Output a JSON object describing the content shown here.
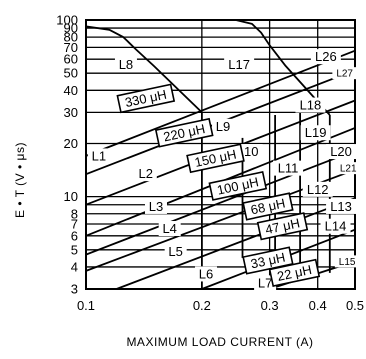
{
  "chart_data": {
    "type": "line",
    "xlabel": "MAXIMUM LOAD CURRENT (A)",
    "ylabel": "E • T (V • μs)",
    "x_scale": "log",
    "y_scale": "log",
    "xlim": [
      0.1,
      0.5
    ],
    "ylim": [
      3,
      100
    ],
    "grid": true,
    "x_ticks": [
      0.1,
      0.2,
      0.3,
      0.4,
      0.5
    ],
    "x_tick_labels": [
      "0.1",
      "0.2",
      "0.3",
      "0.4",
      "0.5"
    ],
    "y_ticks": [
      3,
      4,
      5,
      6,
      7,
      8,
      9,
      10,
      20,
      30,
      40,
      50,
      60,
      70,
      80,
      90,
      100
    ],
    "y_tick_labels": [
      "3",
      "4",
      "5",
      "6",
      "7",
      "8",
      "",
      "10",
      "20",
      "30",
      "40",
      "50",
      "60",
      "70",
      "80",
      "90",
      "100"
    ],
    "x_grid": [
      0.1,
      0.2,
      0.3,
      0.4,
      0.5
    ],
    "y_grid": [
      3,
      4,
      5,
      6,
      7,
      8,
      9,
      10,
      20,
      30,
      40,
      50,
      60,
      70,
      80,
      90,
      100
    ],
    "boundary_lines": [
      {
        "x": [
          0.1,
          0.5
        ],
        "y": [
          17,
          67
        ]
      },
      {
        "x": [
          0.1,
          0.5
        ],
        "y": [
          13.4,
          52
        ]
      },
      {
        "x": [
          0.1,
          0.5
        ],
        "y": [
          9,
          35
        ]
      },
      {
        "x": [
          0.1,
          0.5
        ],
        "y": [
          6,
          24.5
        ]
      },
      {
        "x": [
          0.1,
          0.5
        ],
        "y": [
          4.7,
          18.2
        ]
      },
      {
        "x": [
          0.1,
          0.5
        ],
        "y": [
          3.8,
          14.2
        ]
      },
      {
        "x": [
          0.12,
          0.5
        ],
        "y": [
          3,
          9.8
        ]
      },
      {
        "x": [
          0.2,
          0.5
        ],
        "y": [
          3,
          6.5
        ]
      },
      {
        "x": [
          0.3,
          0.5
        ],
        "y": [
          3,
          4.3
        ]
      }
    ],
    "current_limit_curves": [
      {
        "x": [
          0.1,
          0.115,
          0.125,
          0.135,
          0.15,
          0.2
        ],
        "y": [
          92,
          88,
          80,
          68,
          55,
          30
        ]
      },
      {
        "x": [
          0.245,
          0.27,
          0.285,
          0.3,
          0.33,
          0.43
        ],
        "y": [
          100,
          95,
          85,
          72,
          55,
          29
        ]
      }
    ],
    "vertical_dividers": [
      {
        "x": [
          0.2,
          0.2
        ],
        "y": [
          30,
          3
        ]
      },
      {
        "x": [
          0.255,
          0.255
        ],
        "y": [
          21.5,
          4.5
        ]
      },
      {
        "x": [
          0.31,
          0.31
        ],
        "y": [
          29,
          3.3
        ]
      },
      {
        "x": [
          0.36,
          0.36
        ],
        "y": [
          33,
          3.4
        ]
      },
      {
        "x": [
          0.43,
          0.43
        ],
        "y": [
          29,
          3.7
        ]
      }
    ],
    "region_labels": [
      {
        "text": "L8",
        "x": 0.127,
        "y": 56
      },
      {
        "text": "L17",
        "x": 0.25,
        "y": 56
      },
      {
        "text": "L26",
        "x": 0.42,
        "y": 62
      },
      {
        "text": "L27",
        "x": 0.47,
        "y": 50
      },
      {
        "text": "L18",
        "x": 0.383,
        "y": 33
      },
      {
        "text": "L9",
        "x": 0.227,
        "y": 25
      },
      {
        "text": "L19",
        "x": 0.395,
        "y": 23
      },
      {
        "text": "L1",
        "x": 0.108,
        "y": 17
      },
      {
        "text": "L10",
        "x": 0.263,
        "y": 18
      },
      {
        "text": "L20",
        "x": 0.46,
        "y": 18
      },
      {
        "text": "L21",
        "x": 0.48,
        "y": 14.5
      },
      {
        "text": "L2",
        "x": 0.143,
        "y": 13.5
      },
      {
        "text": "L11",
        "x": 0.335,
        "y": 14.5
      },
      {
        "text": "L12",
        "x": 0.4,
        "y": 11
      },
      {
        "text": "L3",
        "x": 0.152,
        "y": 8.8
      },
      {
        "text": "L13",
        "x": 0.46,
        "y": 8.8
      },
      {
        "text": "L4",
        "x": 0.165,
        "y": 6.6
      },
      {
        "text": "L14",
        "x": 0.445,
        "y": 6.8
      },
      {
        "text": "L5",
        "x": 0.171,
        "y": 4.9
      },
      {
        "text": "L15",
        "x": 0.477,
        "y": 4.3
      },
      {
        "text": "L6",
        "x": 0.205,
        "y": 3.65
      },
      {
        "text": "L7",
        "x": 0.292,
        "y": 3.25
      }
    ],
    "inductance_labels": [
      {
        "text": "330 μH",
        "x": 0.143,
        "y": 36
      },
      {
        "text": "220 μH",
        "x": 0.18,
        "y": 23
      },
      {
        "text": "150 μH",
        "x": 0.217,
        "y": 16.5
      },
      {
        "text": "100 μH",
        "x": 0.248,
        "y": 11.5
      },
      {
        "text": "68 μH",
        "x": 0.297,
        "y": 8.8
      },
      {
        "text": "47 μH",
        "x": 0.324,
        "y": 6.8
      },
      {
        "text": "33 μH",
        "x": 0.297,
        "y": 4.35
      },
      {
        "text": "22 μH",
        "x": 0.348,
        "y": 3.7
      }
    ]
  }
}
